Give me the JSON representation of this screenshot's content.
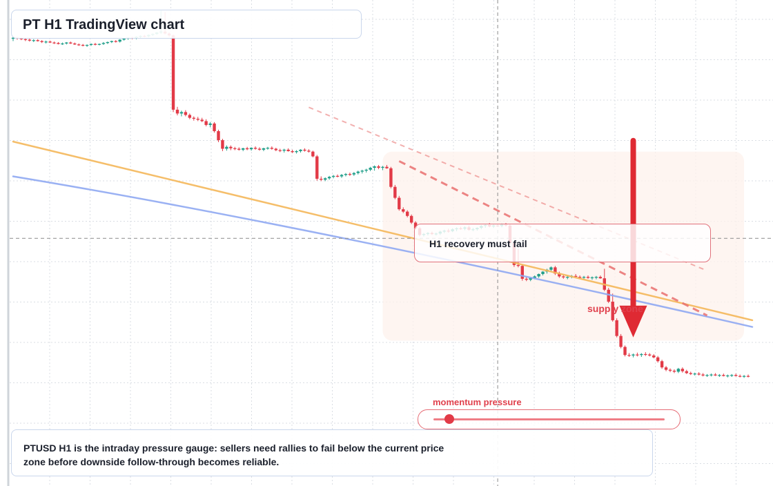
{
  "header": {
    "title": "PT H1 TradingView chart"
  },
  "callout": {
    "text": "H1 recovery must fail"
  },
  "zone": {
    "label": "supply zone"
  },
  "gauge": {
    "label": "momentum pressure",
    "level": 0.07
  },
  "note": {
    "text": "PTUSD H1 is the intraday pressure gauge: sellers need rallies to fail below the current price zone before downside follow-through becomes reliable."
  },
  "colors": {
    "bull": "#1f9e89",
    "bear": "#e23a47",
    "ma_fast": "#f5b85a",
    "ma_slow": "#8fa9f2",
    "resistance": "#e9706f",
    "arrow": "#df2a33",
    "crosshair": "#8a8a8a",
    "grid": "#d9dde3"
  },
  "chart_data": {
    "type": "candlestick",
    "title": "PT H1 TradingView chart",
    "symbol": "PTUSD",
    "timeframe": "H1",
    "y_range": [
      0,
      100
    ],
    "grid": true,
    "series": [
      {
        "kind": "candles",
        "values": [
          [
            93.9,
            94.3,
            93.4,
            94.1
          ],
          [
            94.1,
            94.3,
            93.7,
            94.0
          ],
          [
            94.0,
            94.2,
            93.6,
            93.8
          ],
          [
            93.8,
            94.0,
            93.4,
            93.7
          ],
          [
            93.7,
            93.9,
            93.3,
            93.5
          ],
          [
            93.5,
            93.8,
            93.2,
            93.6
          ],
          [
            93.6,
            93.8,
            93.3,
            93.4
          ],
          [
            93.4,
            93.6,
            93.0,
            93.2
          ],
          [
            93.2,
            93.5,
            92.9,
            93.3
          ],
          [
            93.3,
            93.5,
            93.0,
            93.1
          ],
          [
            93.1,
            93.3,
            92.8,
            93.0
          ],
          [
            93.0,
            93.2,
            92.7,
            92.8
          ],
          [
            92.8,
            93.1,
            92.6,
            92.9
          ],
          [
            92.9,
            93.2,
            92.7,
            93.1
          ],
          [
            93.1,
            93.3,
            92.8,
            92.9
          ],
          [
            92.9,
            93.1,
            92.6,
            92.7
          ],
          [
            92.7,
            92.9,
            92.4,
            92.6
          ],
          [
            92.6,
            92.8,
            92.3,
            92.5
          ],
          [
            92.5,
            92.7,
            92.2,
            92.6
          ],
          [
            92.6,
            92.9,
            92.4,
            92.8
          ],
          [
            92.8,
            93.0,
            92.5,
            92.7
          ],
          [
            92.7,
            92.9,
            92.5,
            92.8
          ],
          [
            92.8,
            93.2,
            92.6,
            93.0
          ],
          [
            93.0,
            93.3,
            92.8,
            93.2
          ],
          [
            93.2,
            93.5,
            93.0,
            93.4
          ],
          [
            93.4,
            93.6,
            93.1,
            93.3
          ],
          [
            93.3,
            93.8,
            93.1,
            93.7
          ],
          [
            93.7,
            94.0,
            93.5,
            93.9
          ],
          [
            93.9,
            94.2,
            93.7,
            94.1
          ],
          [
            94.1,
            94.3,
            93.8,
            94.0
          ],
          [
            94.0,
            94.4,
            93.8,
            94.3
          ],
          [
            94.3,
            94.6,
            94.0,
            94.5
          ],
          [
            94.5,
            94.7,
            94.2,
            94.4
          ],
          [
            94.4,
            94.8,
            94.2,
            94.7
          ],
          [
            94.7,
            95.0,
            94.5,
            94.9
          ],
          [
            94.9,
            95.3,
            94.7,
            95.2
          ],
          [
            95.2,
            99.8,
            94.9,
            95.4
          ],
          [
            95.4,
            99.5,
            94.8,
            95.0
          ],
          [
            95.0,
            95.2,
            94.3,
            94.6
          ],
          [
            94.6,
            94.8,
            78.5,
            79.0
          ],
          [
            79.0,
            79.6,
            77.8,
            78.2
          ],
          [
            78.2,
            78.8,
            77.6,
            78.5
          ],
          [
            78.5,
            78.9,
            77.6,
            77.9
          ],
          [
            77.9,
            78.2,
            77.0,
            77.3
          ],
          [
            77.3,
            77.6,
            76.7,
            77.1
          ],
          [
            77.1,
            77.5,
            76.6,
            76.9
          ],
          [
            76.9,
            77.3,
            76.4,
            76.6
          ],
          [
            76.6,
            77.0,
            75.5,
            75.8
          ],
          [
            75.8,
            76.4,
            75.3,
            76.1
          ],
          [
            76.1,
            76.4,
            74.2,
            74.5
          ],
          [
            74.5,
            74.8,
            72.2,
            72.6
          ],
          [
            72.6,
            72.9,
            70.3,
            70.8
          ],
          [
            70.8,
            71.5,
            70.4,
            71.2
          ],
          [
            71.2,
            71.5,
            70.5,
            70.9
          ],
          [
            70.9,
            71.2,
            70.5,
            70.8
          ],
          [
            70.8,
            71.1,
            70.4,
            70.6
          ],
          [
            70.6,
            71.0,
            70.3,
            70.9
          ],
          [
            70.9,
            71.2,
            70.5,
            70.7
          ],
          [
            70.7,
            71.1,
            70.4,
            71.0
          ],
          [
            71.0,
            71.3,
            70.6,
            70.8
          ],
          [
            70.8,
            71.1,
            70.4,
            70.6
          ],
          [
            70.6,
            71.0,
            70.3,
            70.9
          ],
          [
            70.9,
            71.2,
            70.6,
            71.0
          ],
          [
            71.0,
            71.3,
            70.6,
            70.8
          ],
          [
            70.8,
            71.0,
            70.3,
            70.5
          ],
          [
            70.5,
            70.8,
            70.1,
            70.4
          ],
          [
            70.4,
            70.8,
            70.0,
            70.6
          ],
          [
            70.6,
            70.9,
            70.2,
            70.3
          ],
          [
            70.3,
            70.6,
            69.9,
            70.1
          ],
          [
            70.1,
            70.5,
            69.8,
            70.3
          ],
          [
            70.3,
            70.7,
            70.0,
            70.6
          ],
          [
            70.6,
            70.9,
            70.2,
            70.4
          ],
          [
            70.4,
            70.7,
            70.0,
            70.2
          ],
          [
            70.2,
            70.4,
            69.0,
            69.2
          ],
          [
            69.2,
            69.5,
            64.1,
            64.5
          ],
          [
            64.5,
            65.0,
            64.0,
            64.3
          ],
          [
            64.3,
            64.8,
            64.0,
            64.6
          ],
          [
            64.6,
            65.1,
            64.3,
            64.9
          ],
          [
            64.9,
            65.3,
            64.6,
            65.1
          ],
          [
            65.1,
            65.4,
            64.8,
            65.0
          ],
          [
            65.0,
            65.5,
            64.7,
            65.3
          ],
          [
            65.3,
            65.7,
            65.0,
            65.5
          ],
          [
            65.5,
            65.8,
            65.1,
            65.4
          ],
          [
            65.4,
            65.9,
            65.1,
            65.7
          ],
          [
            65.7,
            66.2,
            65.4,
            66.0
          ],
          [
            66.0,
            66.4,
            65.6,
            66.2
          ],
          [
            66.2,
            66.6,
            65.8,
            66.4
          ],
          [
            66.4,
            67.0,
            66.1,
            66.8
          ],
          [
            66.8,
            67.3,
            66.2,
            67.1
          ],
          [
            67.1,
            67.4,
            66.5,
            66.8
          ],
          [
            66.8,
            67.2,
            66.3,
            67.0
          ],
          [
            67.0,
            67.4,
            66.6,
            66.7
          ],
          [
            66.7,
            67.0,
            62.5,
            62.8
          ],
          [
            62.8,
            63.2,
            60.2,
            60.5
          ],
          [
            60.5,
            60.9,
            57.8,
            58.1
          ],
          [
            58.1,
            58.5,
            57.3,
            57.6
          ],
          [
            57.6,
            57.9,
            56.4,
            56.7
          ],
          [
            56.7,
            57.0,
            55.0,
            55.3
          ],
          [
            55.3,
            55.6,
            53.9,
            54.1
          ],
          [
            54.1,
            54.4,
            52.4,
            52.7
          ],
          [
            52.7,
            53.1,
            52.4,
            52.9
          ],
          [
            52.9,
            53.3,
            52.6,
            53.1
          ],
          [
            53.1,
            53.4,
            52.7,
            52.9
          ],
          [
            52.9,
            53.2,
            52.6,
            53.0
          ],
          [
            53.0,
            53.6,
            52.7,
            53.4
          ],
          [
            53.4,
            53.8,
            53.1,
            53.6
          ],
          [
            53.6,
            54.0,
            53.2,
            53.5
          ],
          [
            53.5,
            54.1,
            53.3,
            53.9
          ],
          [
            53.9,
            54.3,
            53.5,
            54.1
          ],
          [
            54.1,
            54.4,
            53.8,
            54.0
          ],
          [
            54.0,
            54.5,
            53.7,
            54.3
          ],
          [
            54.3,
            54.7,
            53.6,
            53.8
          ],
          [
            53.8,
            54.2,
            53.5,
            53.9
          ],
          [
            53.9,
            54.3,
            53.6,
            54.2
          ],
          [
            54.2,
            54.8,
            53.9,
            54.6
          ],
          [
            54.6,
            55.0,
            54.2,
            54.8
          ],
          [
            54.8,
            55.2,
            54.3,
            54.5
          ],
          [
            54.5,
            54.9,
            54.2,
            54.7
          ],
          [
            54.7,
            55.0,
            54.4,
            54.6
          ],
          [
            54.6,
            55.1,
            54.3,
            54.9
          ],
          [
            54.9,
            55.2,
            54.5,
            54.7
          ],
          [
            54.7,
            54.9,
            50.6,
            51.0
          ],
          [
            51.0,
            51.2,
            46.0,
            46.4
          ],
          [
            46.4,
            49.8,
            45.9,
            46.2
          ],
          [
            46.2,
            46.5,
            43.1,
            43.5
          ],
          [
            43.5,
            43.9,
            43.0,
            43.3
          ],
          [
            43.3,
            43.8,
            43.0,
            43.7
          ],
          [
            43.7,
            44.2,
            43.4,
            44.0
          ],
          [
            44.0,
            44.6,
            43.7,
            44.5
          ],
          [
            44.5,
            45.1,
            44.2,
            45.0
          ],
          [
            45.0,
            45.6,
            44.6,
            45.4
          ],
          [
            45.4,
            46.1,
            45.0,
            45.9
          ],
          [
            45.9,
            46.2,
            44.3,
            44.6
          ],
          [
            44.6,
            45.0,
            43.7,
            44.0
          ],
          [
            44.0,
            44.4,
            43.5,
            43.8
          ],
          [
            43.8,
            44.2,
            43.4,
            43.9
          ],
          [
            43.9,
            44.3,
            43.6,
            44.1
          ],
          [
            44.1,
            44.5,
            43.7,
            43.9
          ],
          [
            43.9,
            44.2,
            43.5,
            43.8
          ],
          [
            43.8,
            44.1,
            43.4,
            43.9
          ],
          [
            43.9,
            44.2,
            43.5,
            43.7
          ],
          [
            43.7,
            44.0,
            43.3,
            43.8
          ],
          [
            43.8,
            44.1,
            43.4,
            43.9
          ],
          [
            43.9,
            44.2,
            43.5,
            43.6
          ],
          [
            43.6,
            45.6,
            40.9,
            41.2
          ],
          [
            41.2,
            41.6,
            38.4,
            38.7
          ],
          [
            38.7,
            40.4,
            34.5,
            34.8
          ],
          [
            34.8,
            35.2,
            31.2,
            31.5
          ],
          [
            31.5,
            31.9,
            28.9,
            29.2
          ],
          [
            29.2,
            29.5,
            27.2,
            27.5
          ],
          [
            27.5,
            27.9,
            27.1,
            27.4
          ],
          [
            27.4,
            27.8,
            27.0,
            27.6
          ],
          [
            27.6,
            28.0,
            27.2,
            27.5
          ],
          [
            27.5,
            27.9,
            27.1,
            27.7
          ],
          [
            27.7,
            28.1,
            27.3,
            27.6
          ],
          [
            27.6,
            27.9,
            27.2,
            27.4
          ],
          [
            27.4,
            27.7,
            26.8,
            27.0
          ],
          [
            27.0,
            27.3,
            25.9,
            26.2
          ],
          [
            26.2,
            26.5,
            24.6,
            24.9
          ],
          [
            24.9,
            25.2,
            24.1,
            24.4
          ],
          [
            24.4,
            24.7,
            23.9,
            24.2
          ],
          [
            24.2,
            24.5,
            23.7,
            24.0
          ],
          [
            24.0,
            24.8,
            23.7,
            24.6
          ],
          [
            24.6,
            24.9,
            23.8,
            24.1
          ],
          [
            24.1,
            24.4,
            23.5,
            23.7
          ],
          [
            23.7,
            24.0,
            23.3,
            23.5
          ],
          [
            23.5,
            23.8,
            23.2,
            23.6
          ],
          [
            23.6,
            23.9,
            23.2,
            23.4
          ],
          [
            23.4,
            23.7,
            23.0,
            23.2
          ],
          [
            23.2,
            23.5,
            22.9,
            23.3
          ],
          [
            23.3,
            23.6,
            23.0,
            23.4
          ],
          [
            23.4,
            23.7,
            23.1,
            23.2
          ],
          [
            23.2,
            23.5,
            22.9,
            23.3
          ],
          [
            23.3,
            23.6,
            23.0,
            23.1
          ],
          [
            23.1,
            23.4,
            22.8,
            23.2
          ],
          [
            23.2,
            23.5,
            22.9,
            23.3
          ],
          [
            23.3,
            23.6,
            23.0,
            23.1
          ],
          [
            23.1,
            23.4,
            22.8,
            23.0
          ],
          [
            23.0,
            23.3,
            22.7,
            23.1
          ],
          [
            23.1,
            23.4,
            22.8,
            23.0
          ]
        ]
      },
      {
        "kind": "line",
        "role": "moving-average-fast",
        "from": [
          0,
          72.3
        ],
        "to": [
          180,
          34.8
        ]
      },
      {
        "kind": "curve",
        "role": "moving-average-slow",
        "from": [
          0,
          65.0
        ],
        "mid": [
          70,
          55.0
        ],
        "to": [
          180,
          33.4
        ]
      },
      {
        "kind": "dashed-line",
        "role": "descending-resistance",
        "from": [
          94,
          68.2
        ],
        "to": [
          169,
          35.8
        ]
      },
      {
        "kind": "dashed-line",
        "role": "outer-channel",
        "from": [
          72,
          79.5
        ],
        "to": [
          169,
          45.2
        ]
      }
    ],
    "annotations": {
      "crosshair_price": 52.0,
      "crosshair_bar": 118,
      "supply_zone_box": {
        "bars": [
          90,
          178
        ],
        "price": [
          30.5,
          70.2
        ]
      },
      "arrow_price_from": 72.5,
      "arrow_price_to": 31.2
    }
  }
}
